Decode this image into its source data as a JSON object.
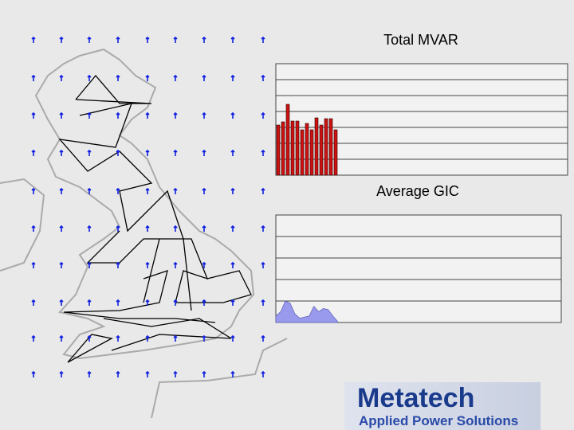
{
  "chart_data": [
    {
      "type": "bar",
      "title": "Total MVAR",
      "color": "#cc1111",
      "x": [
        0,
        1,
        2,
        3,
        4,
        5,
        6,
        7,
        8,
        9,
        10,
        11,
        12
      ],
      "values": [
        3.15,
        3.35,
        4.45,
        3.4,
        3.4,
        2.85,
        3.25,
        2.85,
        3.6,
        3.15,
        3.55,
        3.55,
        2.85
      ],
      "xlim": [
        0,
        61
      ],
      "ylim": [
        0,
        7
      ],
      "yticks": [
        0,
        1,
        2,
        3,
        4,
        5,
        6,
        7
      ],
      "grid": true
    },
    {
      "type": "area",
      "title": "Average GIC",
      "color": "#9999ee",
      "x": [
        0,
        1,
        2,
        3,
        4,
        5,
        6,
        7,
        8,
        9,
        10,
        11,
        12,
        13
      ],
      "values": [
        0.3,
        0.5,
        1.0,
        0.9,
        0.4,
        0.2,
        0.25,
        0.3,
        0.75,
        0.5,
        0.65,
        0.6,
        0.3,
        0.05
      ],
      "xlim": [
        0,
        60
      ],
      "ylim": [
        0,
        5
      ],
      "yticks": [
        0,
        1,
        2,
        3,
        4,
        5
      ],
      "grid": true
    }
  ],
  "logo": {
    "name": "Metatech",
    "tagline": "Applied Power Solutions"
  }
}
